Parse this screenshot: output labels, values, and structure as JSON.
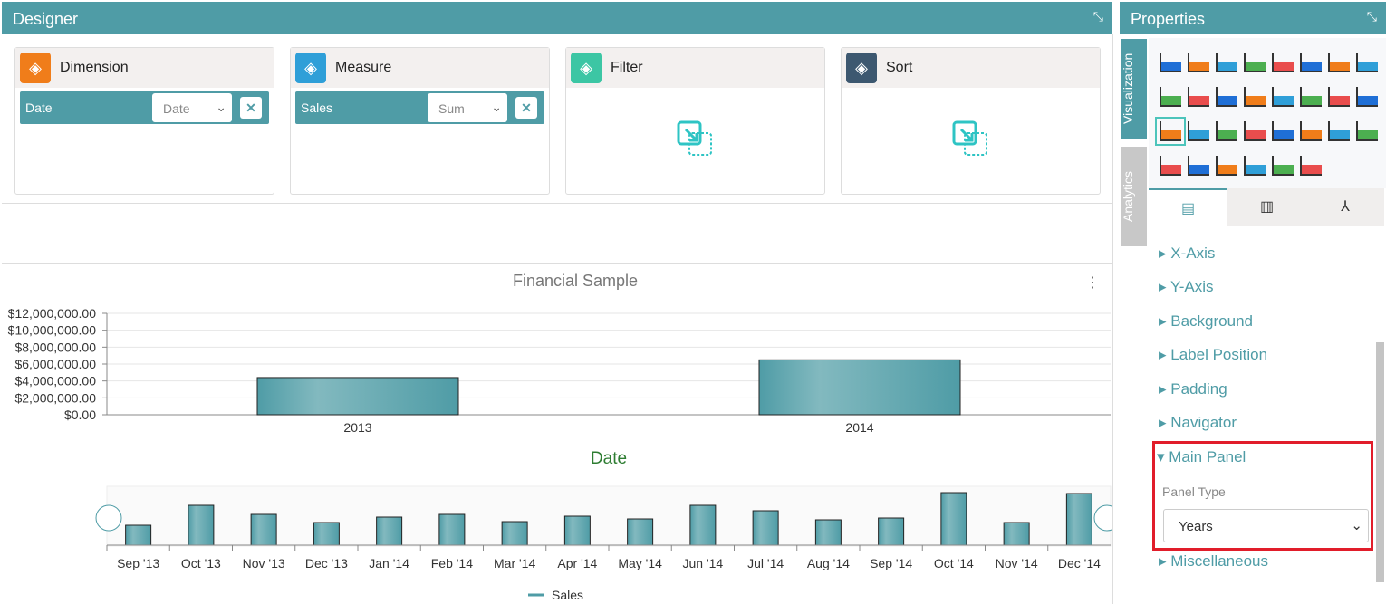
{
  "designer": {
    "title": "Designer",
    "cards": [
      {
        "title": "Dimension",
        "icon": "cube-icon",
        "color": "#f07d1a",
        "pill": {
          "field": "Date",
          "select": "Date"
        }
      },
      {
        "title": "Measure",
        "icon": "box-icon",
        "color": "#2f9fd8",
        "pill": {
          "field": "Sales",
          "select": "Sum"
        }
      },
      {
        "title": "Filter",
        "icon": "funnel-icon",
        "color": "#3cc6a4"
      },
      {
        "title": "Sort",
        "icon": "sort-icon",
        "color": "#3d5870"
      }
    ]
  },
  "chart_data": {
    "type": "bar",
    "title": "Financial Sample",
    "xlabel": "Date",
    "ylabel": "",
    "categories": [
      "2013",
      "2014"
    ],
    "series": [
      {
        "name": "Sales",
        "values": [
          4400000,
          6500000
        ]
      }
    ],
    "ylim": [
      0,
      12000000
    ],
    "yticks": [
      "$0.00",
      "$2,000,000.00",
      "$4,000,000.00",
      "$6,000,000.00",
      "$8,000,000.00",
      "$10,000,000.00",
      "$12,000,000.00"
    ],
    "grid": true,
    "legend": "bottom",
    "color": "#4f9ca6",
    "navigator": {
      "categories": [
        "Sep '13",
        "Oct '13",
        "Nov '13",
        "Dec '13",
        "Jan '14",
        "Feb '14",
        "Mar '14",
        "Apr '14",
        "May '14",
        "Jun '14",
        "Jul '14",
        "Aug '14",
        "Sep '14",
        "Oct '14",
        "Nov '14",
        "Dec '14"
      ],
      "values": [
        22,
        44,
        34,
        25,
        31,
        34,
        26,
        32,
        29,
        44,
        38,
        28,
        30,
        58,
        25,
        57
      ]
    }
  },
  "properties": {
    "title": "Properties",
    "tabs": [
      "Visualization",
      "Analytics"
    ],
    "sections": [
      "X-Axis",
      "Y-Axis",
      "Background",
      "Label Position",
      "Padding",
      "Navigator",
      "Main Panel",
      "Miscellaneous"
    ],
    "main_panel": {
      "label": "Panel Type",
      "value": "Years"
    }
  }
}
